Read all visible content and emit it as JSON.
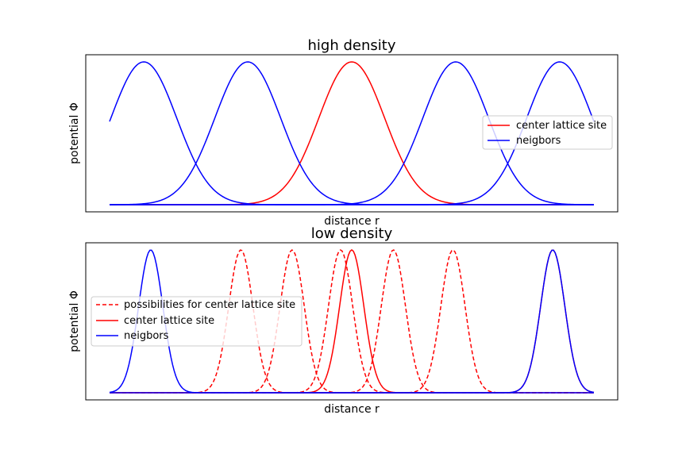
{
  "chart_data": [
    {
      "type": "line",
      "title": "high density",
      "xlabel": "distance r",
      "ylabel": "potential Φ",
      "xlim": [
        0,
        1
      ],
      "ylim": [
        0,
        1
      ],
      "x_ticks_visible": false,
      "y_ticks_visible": false,
      "grid": false,
      "legend_position": "center-right",
      "gaussian_sigma": 0.068,
      "x_start": 0.0,
      "x_end": 1.0,
      "series": [
        {
          "name": "center lattice site",
          "color": "#ff0000",
          "style": "solid",
          "centers": [
            0.5
          ]
        },
        {
          "name": "neigbors",
          "color": "#0000ff",
          "style": "solid",
          "centers": [
            0.0707,
            0.2853,
            0.7147,
            0.9293
          ]
        }
      ],
      "legend": [
        {
          "label": "center lattice site",
          "color": "#ff0000",
          "style": "solid"
        },
        {
          "label": "neigbors",
          "color": "#0000ff",
          "style": "solid"
        }
      ]
    },
    {
      "type": "line",
      "title": "low density",
      "xlabel": "distance r",
      "ylabel": "potential Φ",
      "xlim": [
        0,
        1
      ],
      "ylim": [
        0,
        1
      ],
      "x_ticks_visible": false,
      "y_ticks_visible": false,
      "grid": false,
      "legend_position": "center-left",
      "gaussian_sigma": 0.025,
      "x_start": 0.0,
      "x_end": 1.0,
      "series": [
        {
          "name": "possibilities for center lattice site",
          "color": "#ff0000",
          "style": "dashed",
          "centers": [
            0.271,
            0.377,
            0.477,
            0.586,
            0.709
          ]
        },
        {
          "name": "center lattice site",
          "color": "#ff0000",
          "style": "solid",
          "centers": [
            0.5,
            0.915
          ]
        },
        {
          "name": "neigbors",
          "color": "#0000ff",
          "style": "solid",
          "centers": [
            0.085,
            0.915
          ]
        }
      ],
      "legend": [
        {
          "label": "possibilities for center lattice site",
          "color": "#ff0000",
          "style": "dashed"
        },
        {
          "label": "center lattice site",
          "color": "#ff0000",
          "style": "solid"
        },
        {
          "label": "neigbors",
          "color": "#0000ff",
          "style": "solid"
        }
      ]
    }
  ]
}
